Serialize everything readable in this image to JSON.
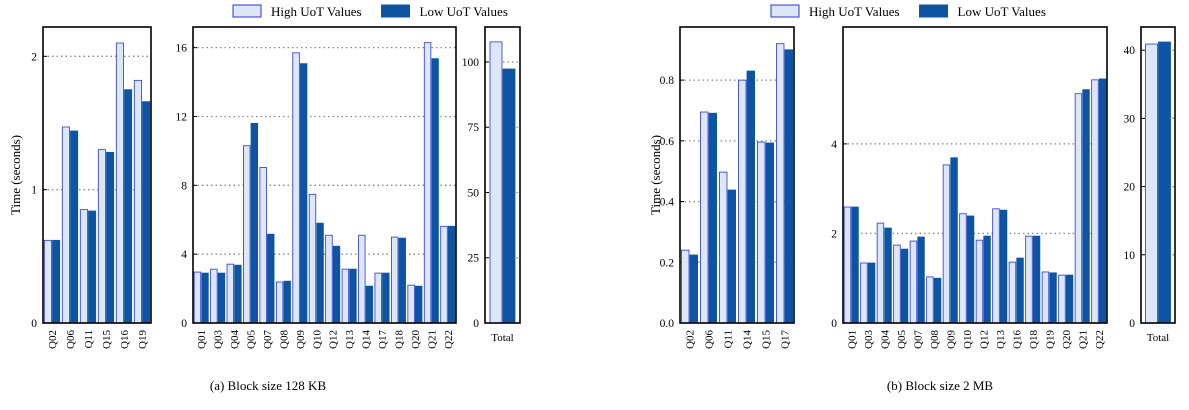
{
  "chart_data": [
    {
      "type": "bar",
      "caption": "(a) Block size 128 KB",
      "ylabel": "Time (seconds)",
      "series": [
        {
          "name": "High UoT Values",
          "color": "#dde7f7"
        },
        {
          "name": "Low UoT Values",
          "color": "#0d55a3"
        }
      ],
      "edge_color": "#2b35d6",
      "panels": [
        {
          "categories": [
            "Q02",
            "Q06",
            "Q11",
            "Q15",
            "Q16",
            "Q19"
          ],
          "ylim": [
            0,
            2.22
          ],
          "yticks": [
            0,
            1,
            2
          ],
          "series": [
            {
              "values": [
                0.62,
                1.47,
                0.85,
                1.3,
                2.1,
                1.82
              ]
            },
            {
              "values": [
                0.62,
                1.44,
                0.84,
                1.28,
                1.75,
                1.66
              ]
            }
          ]
        },
        {
          "categories": [
            "Q01",
            "Q03",
            "Q04",
            "Q05",
            "Q07",
            "Q08",
            "Q09",
            "Q10",
            "Q12",
            "Q13",
            "Q14",
            "Q17",
            "Q18",
            "Q20",
            "Q21",
            "Q22"
          ],
          "ylim": [
            0,
            17.2
          ],
          "yticks": [
            0,
            4,
            8,
            12,
            16
          ],
          "series": [
            {
              "values": [
                2.96,
                3.13,
                3.42,
                10.3,
                9.04,
                2.38,
                15.7,
                7.48,
                5.1,
                3.13,
                5.1,
                2.9,
                4.99,
                2.2,
                16.29,
                5.62
              ]
            },
            {
              "values": [
                2.9,
                2.9,
                3.36,
                11.6,
                5.16,
                2.43,
                15.07,
                5.8,
                4.46,
                3.13,
                2.14,
                2.9,
                4.93,
                2.14,
                15.36,
                5.62
              ]
            }
          ]
        },
        {
          "categories": [
            "Total"
          ],
          "ylim": [
            0,
            113.4
          ],
          "yticks": [
            0,
            25,
            50,
            75,
            100
          ],
          "series": [
            {
              "values": [
                107.7
              ]
            },
            {
              "values": [
                97.3
              ]
            }
          ]
        }
      ]
    },
    {
      "type": "bar",
      "caption": "(b) Block size 2 MB",
      "ylabel": "Time (seconds)",
      "series": [
        {
          "name": "High UoT Values",
          "color": "#dde7f7"
        },
        {
          "name": "Low UoT Values",
          "color": "#0d55a3"
        }
      ],
      "edge_color": "#2b35d6",
      "panels": [
        {
          "categories": [
            "Q02",
            "Q06",
            "Q11",
            "Q14",
            "Q15",
            "Q17"
          ],
          "ylim": [
            0,
            0.975
          ],
          "yticks": [
            {
              "value": 0,
              "label": "0.0"
            },
            0.2,
            0.4,
            0.6,
            0.8
          ],
          "series": [
            {
              "values": [
                0.24,
                0.695,
                0.497,
                0.8,
                0.596,
                0.92
              ]
            },
            {
              "values": [
                0.224,
                0.691,
                0.438,
                0.83,
                0.593,
                0.9
              ]
            }
          ]
        },
        {
          "categories": [
            "Q01",
            "Q03",
            "Q04",
            "Q05",
            "Q07",
            "Q08",
            "Q09",
            "Q10",
            "Q12",
            "Q13",
            "Q16",
            "Q18",
            "Q19",
            "Q20",
            "Q21",
            "Q22"
          ],
          "ylim": [
            0,
            6.61
          ],
          "yticks": [
            0,
            2,
            4
          ],
          "series": [
            {
              "values": [
                2.59,
                1.34,
                2.23,
                1.74,
                1.83,
                1.03,
                3.53,
                2.44,
                1.85,
                2.55,
                1.36,
                1.94,
                1.14,
                1.07,
                5.12,
                5.43
              ]
            },
            {
              "values": [
                2.59,
                1.34,
                2.12,
                1.65,
                1.92,
                1.0,
                3.69,
                2.39,
                1.94,
                2.52,
                1.45,
                1.94,
                1.12,
                1.07,
                5.21,
                5.45
              ]
            }
          ]
        },
        {
          "categories": [
            "Total"
          ],
          "ylim": [
            0,
            43.4
          ],
          "yticks": [
            0,
            10,
            20,
            30,
            40
          ],
          "series": [
            {
              "values": [
                40.9
              ]
            },
            {
              "values": [
                41.2
              ]
            }
          ]
        }
      ]
    }
  ]
}
